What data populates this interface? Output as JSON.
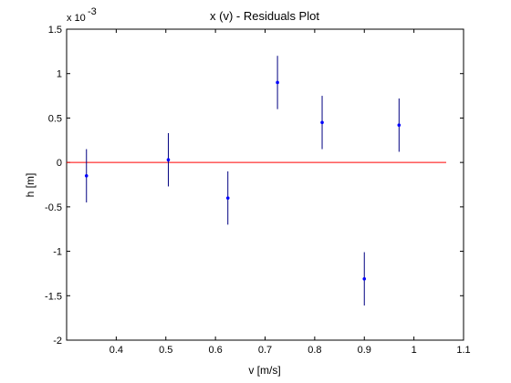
{
  "chart_data": {
    "type": "scatter",
    "title": "x (v) - Residuals Plot",
    "xlabel": "v [m/s]",
    "ylabel": "h [m]",
    "y_exponent_label": "x 10",
    "y_exponent_power": "-3",
    "xlim": [
      0.3,
      1.1
    ],
    "ylim": [
      -2,
      1.5
    ],
    "x_ticks": [
      0.4,
      0.5,
      0.6,
      0.7,
      0.8,
      0.9,
      1.0,
      1.1
    ],
    "x_tick_labels": [
      "0.4",
      "0.5",
      "0.6",
      "0.7",
      "0.8",
      "0.9",
      "1",
      "1.1"
    ],
    "y_ticks": [
      -2,
      -1.5,
      -1,
      -0.5,
      0,
      0.5,
      1,
      1.5
    ],
    "y_tick_labels": [
      "-2",
      "-1.5",
      "-1",
      "-0.5",
      "0",
      "0.5",
      "1",
      "1.5"
    ],
    "grid": false,
    "point_color": "#0000ff",
    "errorbar_color": "#000080",
    "zero_line_color": "#ff0000",
    "zero_line": {
      "y": 0,
      "x_start": 0.3,
      "x_end": 1.065
    },
    "series": [
      {
        "x": [
          0.34,
          0.505,
          0.625,
          0.725,
          0.815,
          0.9,
          0.97
        ],
        "y": [
          -0.15,
          0.03,
          -0.4,
          0.9,
          0.45,
          -1.31,
          0.42
        ],
        "error": [
          0.3,
          0.3,
          0.3,
          0.3,
          0.3,
          0.3,
          0.3
        ]
      }
    ]
  }
}
